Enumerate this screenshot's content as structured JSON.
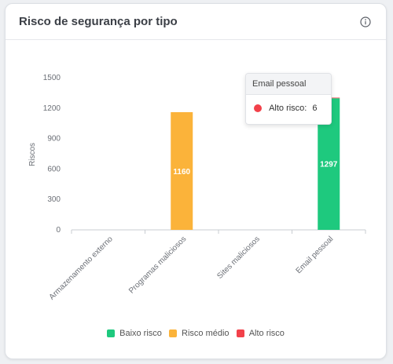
{
  "card": {
    "title": "Risco de segurança por tipo",
    "info_icon": "info-icon"
  },
  "chart_data": {
    "type": "bar",
    "stacked": true,
    "categories": [
      "Armazenamento externo",
      "Programas maliciosos",
      "Sites maliciosos",
      "Email pessoal"
    ],
    "series": [
      {
        "name": "Baixo risco",
        "color": "#1ec97e",
        "values": [
          0,
          0,
          0,
          1297
        ]
      },
      {
        "name": "Risco médio",
        "color": "#fbb33a",
        "values": [
          0,
          1160,
          0,
          0
        ]
      },
      {
        "name": "Alto risco",
        "color": "#f2414a",
        "values": [
          0,
          0,
          0,
          6
        ]
      }
    ],
    "data_labels": [
      "",
      "1160",
      "",
      "1297"
    ],
    "ylabel": "Riscos",
    "ylim": [
      0,
      1500
    ],
    "yticks": [
      0,
      300,
      600,
      900,
      1200,
      1500
    ],
    "legend_position": "bottom"
  },
  "tooltip": {
    "title": "Email pessoal",
    "series_name": "Alto risco:",
    "value": "6",
    "color": "#f2414a"
  },
  "legend": [
    {
      "label": "Baixo risco",
      "color": "#1ec97e"
    },
    {
      "label": "Risco médio",
      "color": "#fbb33a"
    },
    {
      "label": "Alto risco",
      "color": "#f2414a"
    }
  ]
}
